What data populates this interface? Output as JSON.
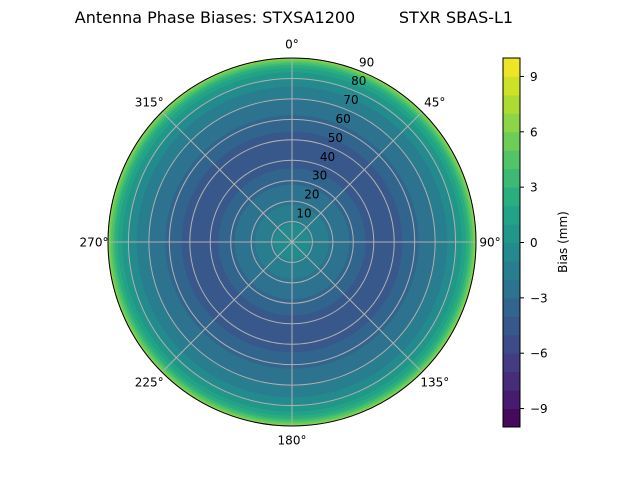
{
  "chart_data": {
    "type": "polar-contour",
    "title_left": "Antenna Phase Biases: STXSA1200",
    "title_right": "STXR SBAS-L1",
    "angle_labels": [
      "0°",
      "45°",
      "90°",
      "135°",
      "180°",
      "225°",
      "270°",
      "315°"
    ],
    "angle_ticks_deg": [
      0,
      45,
      90,
      135,
      180,
      225,
      270,
      315
    ],
    "radial_ticks": [
      10,
      20,
      30,
      40,
      50,
      60,
      70,
      80,
      90
    ],
    "radial_range": [
      0,
      90
    ],
    "grid": true,
    "colormap": "viridis",
    "colorbar": {
      "label": "Bias (mm)",
      "range": [
        -10,
        10
      ],
      "levels_step": 1,
      "ticks": [
        -9,
        -6,
        -3,
        0,
        3,
        6,
        9
      ],
      "tick_labels": [
        "−9",
        "−6",
        "−3",
        "0",
        "3",
        "6",
        "9"
      ]
    },
    "radial_profile": {
      "description_units": "zenith angle (deg) outer edge of band → bias band lower bound (mm)",
      "zenith_outer": [
        90,
        89.3,
        88.5,
        87.5,
        86.5,
        85,
        83,
        80,
        76,
        70,
        62,
        54,
        36,
        28,
        18,
        9
      ],
      "bias_level": [
        6,
        5,
        4,
        3,
        2,
        1,
        0,
        -1,
        -2,
        -3,
        -4,
        -5,
        -4,
        -3,
        -2,
        -1
      ]
    }
  }
}
